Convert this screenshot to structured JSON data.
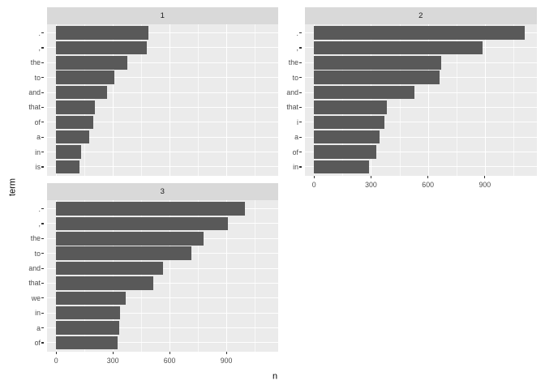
{
  "chart_data": {
    "type": "bar",
    "orientation": "horizontal",
    "title": "",
    "xlabel": "n",
    "ylabel": "term",
    "x_ticks": [
      "0",
      "300",
      "600",
      "900"
    ],
    "x_tick_values": [
      0,
      300,
      600,
      900
    ],
    "x_minor_tick_values": [
      150,
      450,
      750,
      1050
    ],
    "xlim": [
      -48,
      1172
    ],
    "grid": "white major and minor gridlines on grey panel",
    "legend_position": "none",
    "facets": [
      {
        "label": "1",
        "terms": [
          ".",
          ",",
          "the",
          "to",
          "and",
          "that",
          "of",
          "a",
          "in",
          "is"
        ],
        "values": [
          490,
          480,
          375,
          310,
          270,
          205,
          195,
          175,
          130,
          125
        ]
      },
      {
        "label": "2",
        "terms": [
          ".",
          ",",
          "the",
          "to",
          "and",
          "that",
          "i",
          "a",
          "of",
          "in"
        ],
        "values": [
          1110,
          890,
          670,
          660,
          530,
          385,
          370,
          345,
          330,
          290
        ]
      },
      {
        "label": "3",
        "terms": [
          ".",
          ",",
          "the",
          "to",
          "and",
          "that",
          "we",
          "in",
          "a",
          "of"
        ],
        "values": [
          1000,
          910,
          780,
          715,
          565,
          515,
          370,
          340,
          335,
          325
        ]
      }
    ]
  },
  "colors": {
    "bar": "#595959",
    "panel_bg": "#EBEBEB",
    "strip_bg": "#D9D9D9",
    "gridline": "#FFFFFF",
    "axis_text": "#4D4D4D",
    "tick_mark": "#333333",
    "axis_title": "#000000",
    "background": "#FFFFFF"
  }
}
